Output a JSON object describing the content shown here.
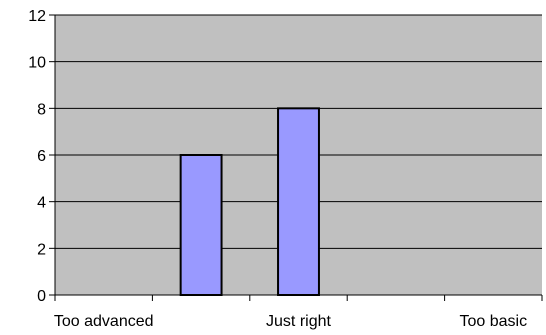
{
  "chart_data": {
    "type": "bar",
    "categories": [
      "Too advanced",
      "",
      "Just right",
      "",
      "Too basic"
    ],
    "values": [
      null,
      6,
      8,
      null,
      null
    ],
    "title": "",
    "xlabel": "",
    "ylabel": "",
    "ylim": [
      0,
      12
    ],
    "yticks": [
      0,
      2,
      4,
      6,
      8,
      10,
      12
    ],
    "grid": true,
    "legend": "none",
    "colors": {
      "plot_background": "#c0c0c0",
      "bar_fill": "#9999ff",
      "bar_stroke": "#000000",
      "gridline": "#000000"
    }
  }
}
